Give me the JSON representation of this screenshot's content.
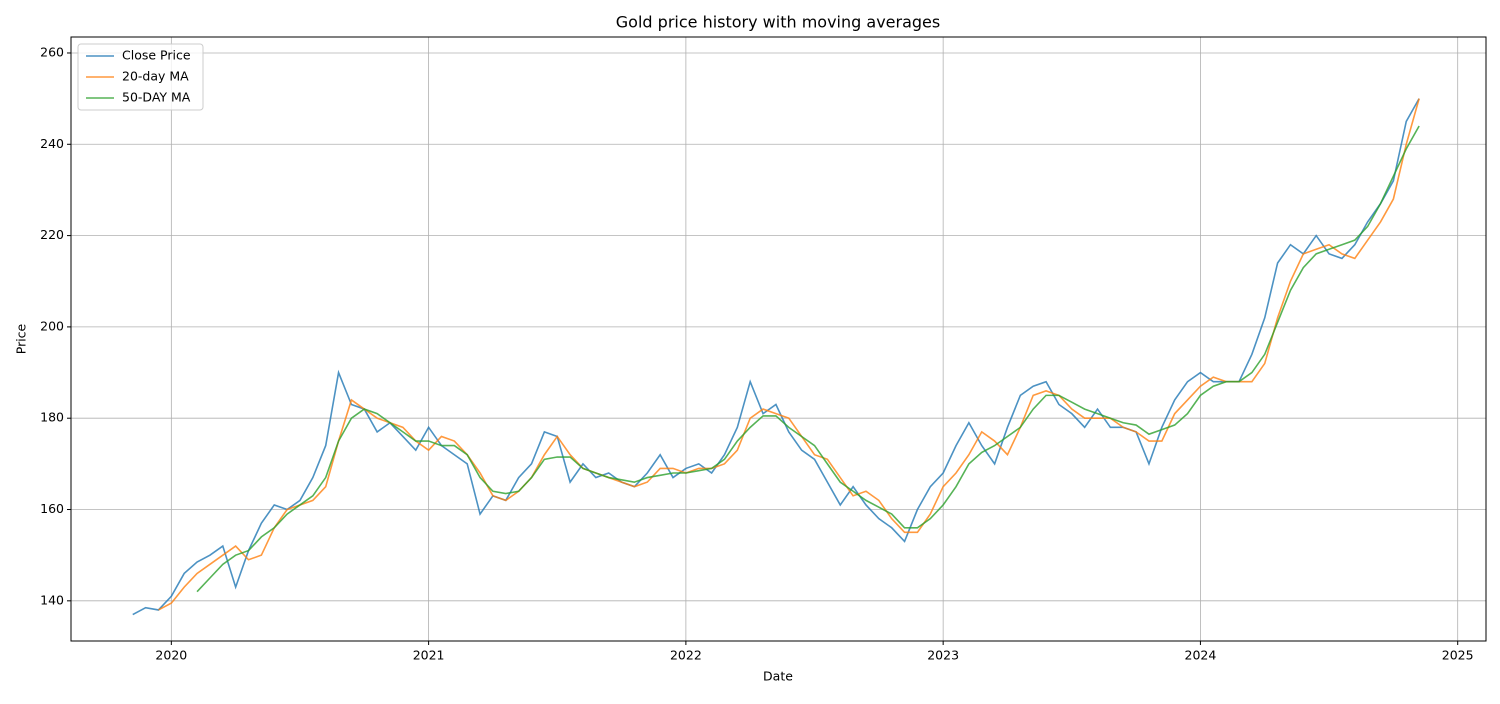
{
  "chart_data": {
    "type": "line",
    "title": "Gold price history with moving averages",
    "xlabel": "Date",
    "ylabel": "Price",
    "x": [
      2019.85,
      2019.9,
      2019.95,
      2020.0,
      2020.05,
      2020.1,
      2020.15,
      2020.2,
      2020.25,
      2020.3,
      2020.35,
      2020.4,
      2020.45,
      2020.5,
      2020.55,
      2020.6,
      2020.65,
      2020.7,
      2020.75,
      2020.8,
      2020.85,
      2020.9,
      2020.95,
      2021.0,
      2021.05,
      2021.1,
      2021.15,
      2021.2,
      2021.25,
      2021.3,
      2021.35,
      2021.4,
      2021.45,
      2021.5,
      2021.55,
      2021.6,
      2021.65,
      2021.7,
      2021.75,
      2021.8,
      2021.85,
      2021.9,
      2021.95,
      2022.0,
      2022.05,
      2022.1,
      2022.15,
      2022.2,
      2022.25,
      2022.3,
      2022.35,
      2022.4,
      2022.45,
      2022.5,
      2022.55,
      2022.6,
      2022.65,
      2022.7,
      2022.75,
      2022.8,
      2022.85,
      2022.9,
      2022.95,
      2023.0,
      2023.05,
      2023.1,
      2023.15,
      2023.2,
      2023.25,
      2023.3,
      2023.35,
      2023.4,
      2023.45,
      2023.5,
      2023.55,
      2023.6,
      2023.65,
      2023.7,
      2023.75,
      2023.8,
      2023.85,
      2023.9,
      2023.95,
      2024.0,
      2024.05,
      2024.1,
      2024.15,
      2024.2,
      2024.25,
      2024.3,
      2024.35,
      2024.4,
      2024.45,
      2024.5,
      2024.55,
      2024.6,
      2024.65,
      2024.7,
      2024.75,
      2024.8,
      2024.85
    ],
    "series": [
      {
        "name": "Close Price",
        "color": "#1f77b4",
        "values": [
          137,
          138.5,
          138,
          141,
          146,
          148.5,
          150,
          152,
          143,
          151,
          157,
          161,
          160,
          162,
          167,
          174,
          190,
          183,
          182,
          177,
          179,
          176,
          173,
          178,
          174,
          172,
          170,
          159,
          163,
          162,
          167,
          170,
          177,
          176,
          166,
          170,
          167,
          168,
          166,
          165,
          168,
          172,
          167,
          169,
          170,
          168,
          172,
          178,
          188,
          181,
          183,
          177,
          173,
          171,
          166,
          161,
          165,
          161,
          158,
          156,
          153,
          160,
          165,
          168,
          174,
          179,
          174,
          170,
          178,
          185,
          187,
          188,
          183,
          181,
          178,
          182,
          178,
          178,
          177,
          170,
          178,
          184,
          188,
          190,
          188,
          188,
          188,
          194,
          202,
          214,
          218,
          216,
          220,
          216,
          215,
          218,
          223,
          227,
          232,
          245,
          250
        ]
      },
      {
        "name": "20-day MA",
        "color": "#ff7f0e",
        "values": [
          null,
          null,
          138,
          139.5,
          143,
          146,
          148,
          150,
          152,
          149,
          150,
          156,
          160,
          161,
          162,
          165,
          175,
          184,
          182,
          180,
          179,
          178,
          175,
          173,
          176,
          175,
          172,
          168,
          163,
          162,
          164,
          167,
          172,
          176,
          172,
          169,
          168,
          167,
          166,
          165,
          166,
          169,
          169,
          168,
          169,
          169,
          170,
          173,
          180,
          182,
          181,
          180,
          176,
          172,
          171,
          167,
          163,
          164,
          162,
          158,
          155,
          155,
          159,
          165,
          168,
          172,
          177,
          175,
          172,
          178,
          185,
          186,
          185,
          182,
          180,
          180,
          180,
          178,
          177,
          175,
          175,
          181,
          184,
          187,
          189,
          188,
          188,
          188,
          192,
          202,
          210,
          216,
          217,
          218,
          216,
          215,
          219,
          223,
          228,
          240,
          250
        ]
      },
      {
        "name": "50-DAY MA",
        "color": "#2ca02c",
        "values": [
          null,
          null,
          null,
          null,
          null,
          142,
          145,
          148,
          150,
          151,
          154,
          156,
          159,
          161,
          163,
          167,
          175,
          180,
          182,
          181,
          179,
          177,
          175,
          175,
          174,
          174,
          172,
          167,
          164,
          163.5,
          164,
          167,
          171,
          171.5,
          171.5,
          169,
          168,
          167,
          166.5,
          166,
          167,
          167.5,
          168,
          168,
          168.5,
          169,
          171,
          175,
          178,
          180.5,
          180.5,
          178,
          176,
          174,
          170,
          166,
          164,
          162,
          160.5,
          159,
          156,
          156,
          158,
          161,
          165,
          170,
          172.5,
          174,
          176,
          178,
          182,
          185,
          185,
          183.5,
          182,
          181,
          180,
          179,
          178.5,
          176.5,
          177.5,
          178.5,
          181,
          185,
          187,
          188,
          188,
          190,
          194,
          201,
          208,
          213,
          216,
          217,
          218,
          219,
          222,
          227,
          233,
          239,
          244
        ]
      }
    ],
    "xlim": [
      2019.61,
      2025.11
    ],
    "xticks": [
      2020,
      2021,
      2022,
      2023,
      2024,
      2025
    ],
    "ylim": [
      131.2,
      263.5
    ],
    "yticks": [
      140,
      160,
      180,
      200,
      220,
      240,
      260
    ],
    "grid": true,
    "legend": "upper-left"
  }
}
